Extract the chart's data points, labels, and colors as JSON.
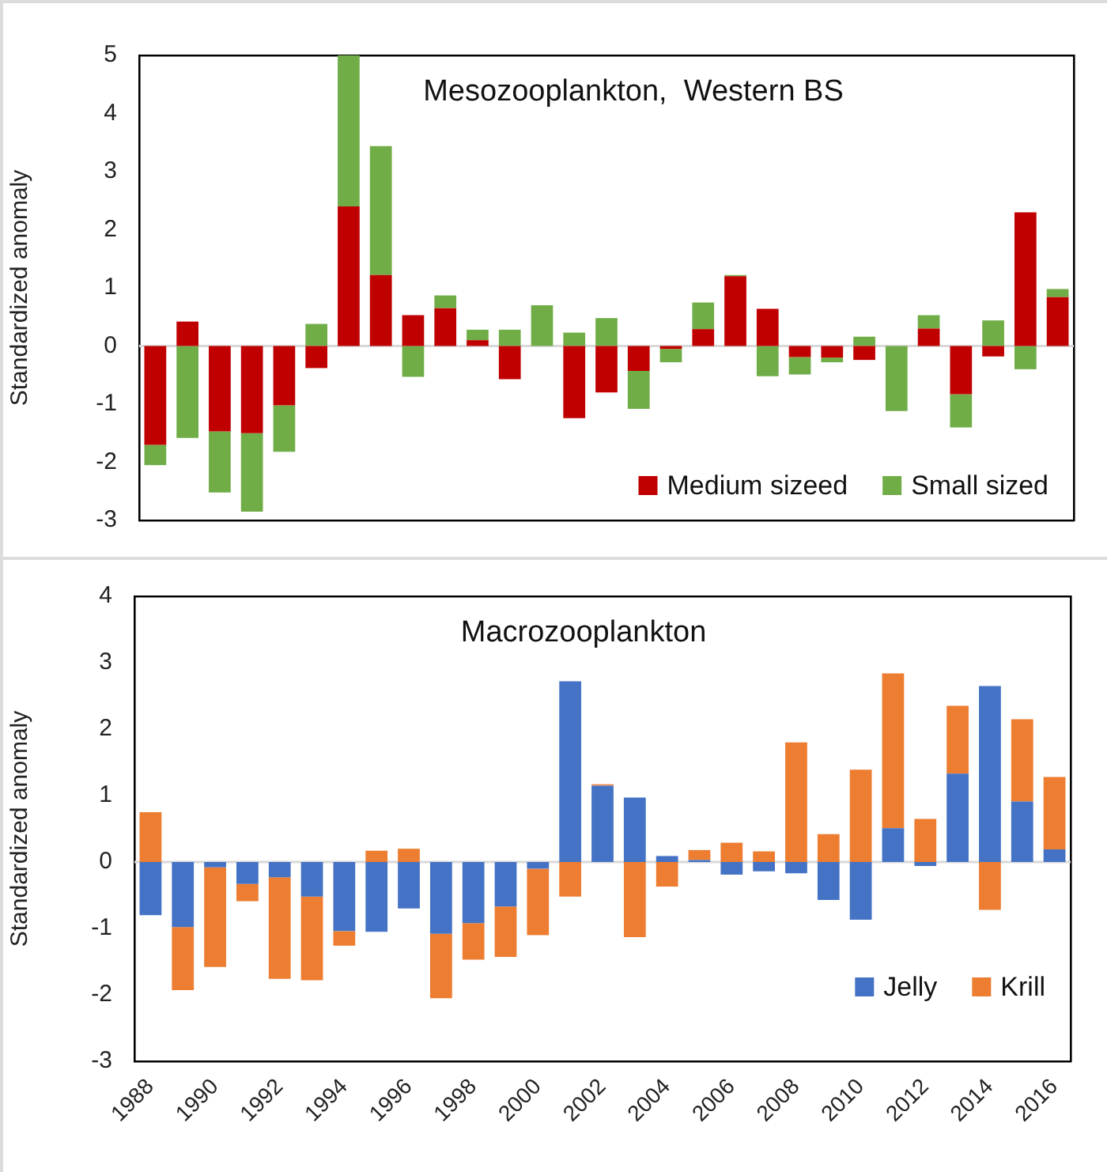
{
  "chart_data": [
    {
      "type": "bar",
      "title": "Mesozooplankton,  Western BS",
      "ylabel": "Standardized anomaly",
      "stacked": true,
      "grid": false,
      "legend": "bottom right",
      "tick_labels": "y",
      "categories": [
        "1988",
        null,
        "1990",
        null,
        "1992",
        null,
        "1994",
        null,
        "1996",
        null,
        "1998",
        null,
        "2000",
        null,
        "2002",
        null,
        "2004",
        null,
        "2006",
        null,
        "2008",
        null,
        "2010",
        null,
        "2012",
        null,
        "2014",
        null,
        "2016"
      ],
      "ylim": [
        -3,
        5
      ],
      "yticks": [
        -3,
        -2,
        -1,
        0,
        1,
        2,
        3,
        4,
        5
      ],
      "ref_lines": [
        {
          "axis": "y",
          "value": 0,
          "color": "#d9d9d9"
        }
      ],
      "series": [
        {
          "name": "Medium sizeed",
          "color": "#c00000",
          "values": [
            -1.7,
            0.42,
            -1.47,
            -1.5,
            -1.02,
            -0.38,
            2.4,
            1.22,
            0.53,
            0.65,
            0.1,
            -0.57,
            0,
            -1.24,
            -0.8,
            -0.43,
            -0.05,
            0.29,
            1.2,
            0.64,
            -0.19,
            -0.2,
            -0.24,
            0,
            0.3,
            -0.83,
            -0.18,
            2.3,
            0.84
          ]
        },
        {
          "name": "Small sized",
          "color": "#70ad47",
          "values": [
            -0.35,
            -1.58,
            -1.05,
            -1.35,
            -0.8,
            0.38,
            2.6,
            2.22,
            -0.53,
            0.22,
            0.18,
            0.28,
            0.7,
            0.23,
            0.48,
            -0.65,
            -0.23,
            0.46,
            0.02,
            -0.52,
            -0.3,
            -0.08,
            0.16,
            -1.12,
            0.23,
            -0.57,
            0.44,
            -0.4,
            0.14
          ]
        }
      ]
    },
    {
      "type": "bar",
      "title": "Macrozooplankton",
      "ylabel": "Standardized anomaly",
      "stacked": true,
      "grid": false,
      "legend": "bottom right",
      "categories": [
        "1988",
        null,
        "1990",
        null,
        "1992",
        null,
        "1994",
        null,
        "1996",
        null,
        "1998",
        null,
        "2000",
        null,
        "2002",
        null,
        "2004",
        null,
        "2006",
        null,
        "2008",
        null,
        "2010",
        null,
        "2012",
        null,
        "2014",
        null,
        "2016"
      ],
      "ylim": [
        -3,
        4
      ],
      "yticks": [
        -3,
        -2,
        -1,
        0,
        1,
        2,
        3,
        4
      ],
      "ref_lines": [
        {
          "axis": "y",
          "value": 0,
          "color": "#d9d9d9"
        }
      ],
      "series": [
        {
          "name": "Jelly",
          "color": "#4472c4",
          "values": [
            -0.8,
            -0.98,
            -0.08,
            -0.33,
            -0.23,
            -0.52,
            -1.04,
            -1.05,
            -0.7,
            -1.08,
            -0.92,
            -0.67,
            -0.1,
            2.72,
            1.15,
            0.97,
            0.09,
            0.03,
            -0.19,
            -0.14,
            -0.17,
            -0.57,
            -0.87,
            0.51,
            -0.06,
            1.33,
            2.65,
            0.91,
            0.19
          ]
        },
        {
          "name": "Krill",
          "color": "#ed7d31",
          "values": [
            0.75,
            -0.95,
            -1.5,
            -0.26,
            -1.53,
            -1.26,
            -0.22,
            0.17,
            0.2,
            -0.97,
            -0.55,
            -0.76,
            -1.0,
            -0.52,
            0.02,
            -1.13,
            -0.37,
            0.15,
            0.29,
            0.16,
            1.8,
            0.42,
            1.39,
            2.33,
            0.65,
            1.02,
            -0.72,
            1.24,
            1.09
          ]
        }
      ]
    }
  ]
}
